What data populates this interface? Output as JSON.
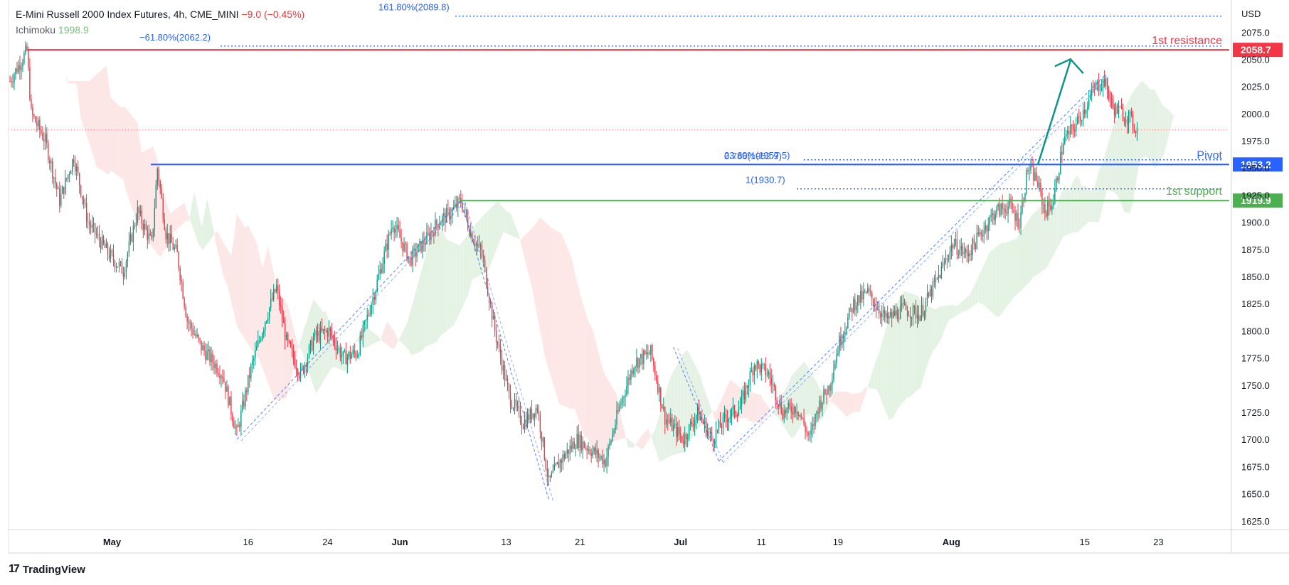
{
  "header": {
    "symbol": "E-Mini Russell 2000 Index Futures, 4h, CME_MINI",
    "change": "−9.0 (−0.45%)",
    "indicator": "Ichimoku",
    "indicator_value": "1998.9"
  },
  "branding": {
    "logo": "17",
    "name": "TradingView"
  },
  "chart_data": {
    "type": "candlestick",
    "currency": "USD",
    "ylim": [
      1617,
      2102
    ],
    "y_ticks": [
      1625,
      1650,
      1675,
      1700,
      1725,
      1750,
      1775,
      1800,
      1825,
      1850,
      1875,
      1900,
      1925,
      1950,
      1975,
      2000,
      2025,
      2050,
      2075
    ],
    "x_ticks": [
      {
        "label": "May",
        "t": 72
      },
      {
        "label": "16",
        "t": 168
      },
      {
        "label": "24",
        "t": 224
      },
      {
        "label": "Jun",
        "t": 275
      },
      {
        "label": "13",
        "t": 350
      },
      {
        "label": "21",
        "t": 402
      },
      {
        "label": "Jul",
        "t": 473
      },
      {
        "label": "11",
        "t": 530
      },
      {
        "label": "19",
        "t": 584
      },
      {
        "label": "Aug",
        "t": 664
      },
      {
        "label": "15",
        "t": 758
      },
      {
        "label": "23",
        "t": 810
      }
    ],
    "t_range": [
      -1,
      860
    ],
    "last_t": 795,
    "close_path": [
      [
        0,
        2030
      ],
      [
        12,
        2058
      ],
      [
        15,
        2000
      ],
      [
        25,
        1975
      ],
      [
        35,
        1920
      ],
      [
        45,
        1960
      ],
      [
        55,
        1900
      ],
      [
        70,
        1870
      ],
      [
        80,
        1855
      ],
      [
        90,
        1910
      ],
      [
        100,
        1880
      ],
      [
        104,
        1950
      ],
      [
        110,
        1890
      ],
      [
        118,
        1870
      ],
      [
        125,
        1810
      ],
      [
        135,
        1785
      ],
      [
        150,
        1760
      ],
      [
        160,
        1705
      ],
      [
        170,
        1765
      ],
      [
        180,
        1810
      ],
      [
        188,
        1840
      ],
      [
        195,
        1790
      ],
      [
        205,
        1760
      ],
      [
        215,
        1795
      ],
      [
        225,
        1800
      ],
      [
        235,
        1775
      ],
      [
        245,
        1780
      ],
      [
        258,
        1840
      ],
      [
        270,
        1900
      ],
      [
        282,
        1865
      ],
      [
        294,
        1885
      ],
      [
        302,
        1900
      ],
      [
        312,
        1910
      ],
      [
        318,
        1920
      ],
      [
        325,
        1890
      ],
      [
        333,
        1870
      ],
      [
        342,
        1800
      ],
      [
        352,
        1740
      ],
      [
        362,
        1715
      ],
      [
        372,
        1730
      ],
      [
        380,
        1660
      ],
      [
        388,
        1680
      ],
      [
        400,
        1700
      ],
      [
        410,
        1690
      ],
      [
        420,
        1680
      ],
      [
        430,
        1730
      ],
      [
        440,
        1770
      ],
      [
        452,
        1780
      ],
      [
        462,
        1720
      ],
      [
        475,
        1700
      ],
      [
        485,
        1725
      ],
      [
        495,
        1700
      ],
      [
        505,
        1720
      ],
      [
        515,
        1730
      ],
      [
        525,
        1770
      ],
      [
        535,
        1760
      ],
      [
        545,
        1725
      ],
      [
        555,
        1730
      ],
      [
        564,
        1700
      ],
      [
        570,
        1730
      ],
      [
        578,
        1750
      ],
      [
        585,
        1790
      ],
      [
        595,
        1825
      ],
      [
        605,
        1835
      ],
      [
        618,
        1810
      ],
      [
        630,
        1820
      ],
      [
        642,
        1815
      ],
      [
        655,
        1850
      ],
      [
        665,
        1880
      ],
      [
        675,
        1870
      ],
      [
        685,
        1890
      ],
      [
        695,
        1910
      ],
      [
        705,
        1915
      ],
      [
        712,
        1900
      ],
      [
        718,
        1950
      ],
      [
        724,
        1940
      ],
      [
        730,
        1910
      ],
      [
        736,
        1920
      ],
      [
        743,
        1975
      ],
      [
        752,
        1990
      ],
      [
        760,
        2010
      ],
      [
        766,
        2025
      ],
      [
        772,
        2030
      ],
      [
        778,
        2005
      ],
      [
        785,
        2000
      ],
      [
        790,
        1995
      ],
      [
        795,
        1985
      ]
    ],
    "current_price": 1985,
    "price_labels": [
      {
        "name": "1st resistance",
        "value": 2058.7,
        "label": "2058.7",
        "color": "#f23645"
      },
      {
        "name": "Pivot",
        "value": 1953.2,
        "label": "1953.2",
        "color": "#2962ff"
      },
      {
        "name": "1st support",
        "value": 1919.9,
        "label": "1919.9",
        "color": "#4caf50"
      }
    ],
    "fibonacci": [
      {
        "label": "161.80%(2089.8)",
        "value": 2089.8
      },
      {
        "label": "−61.80%(2062.2)",
        "value": 2062.2
      },
      {
        "label": "0.786(1952.9)",
        "value": 1952.9
      },
      {
        "label": "23.60%(1957.5)",
        "value": 1957.5
      },
      {
        "label": "1(1930.7)",
        "value": 1930.7
      }
    ],
    "channels": [
      {
        "from": [
          160,
          1700
        ],
        "to": [
          318,
          1920
        ]
      },
      {
        "from": [
          318,
          1920
        ],
        "to": [
          380,
          1645
        ]
      },
      {
        "from": [
          468,
          1785
        ],
        "to": [
          500,
          1680
        ]
      },
      {
        "from": [
          500,
          1680
        ],
        "to": [
          772,
          2035
        ]
      }
    ],
    "projection": {
      "from": [
        725,
        1953
      ],
      "to": [
        748,
        2058
      ]
    },
    "colors": {
      "up": "#089981",
      "down": "#f23645",
      "bullish_cloud": "#e4f2e4",
      "bearish_cloud": "#fde6e6",
      "fib": "#2962ff",
      "arrow": "#0d9488"
    }
  }
}
